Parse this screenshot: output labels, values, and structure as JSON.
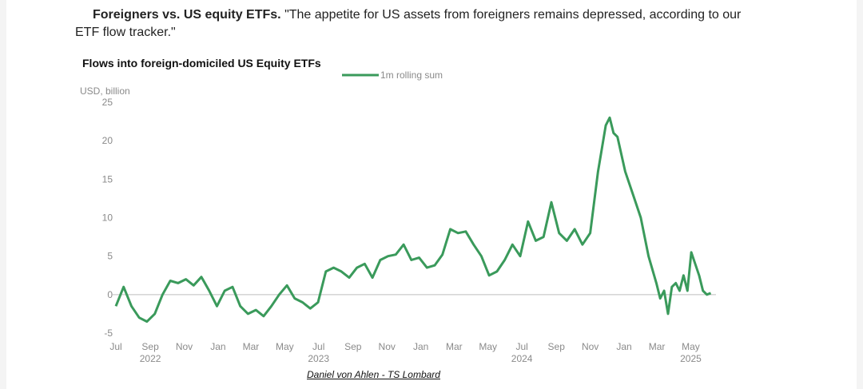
{
  "headline": {
    "bold": "Foreigners vs. US equity ETFs.",
    "quote": " \"The appetite for US assets from foreigners remains depressed, according to our ETF flow tracker.\""
  },
  "credit": "Daniel von Ahlen - TS Lombard",
  "colors": {
    "line": "#3a9a5b",
    "zero": "#bdbdbd",
    "text": "#8a8a8a"
  },
  "chart_data": {
    "type": "line",
    "title": "Flows into foreign-domiciled US Equity ETFs",
    "ylabel": "USD, billion",
    "xlabel": "",
    "ylim": [
      -5,
      25
    ],
    "yticks": [
      25,
      20,
      15,
      10,
      5,
      0,
      -5
    ],
    "x_tick_labels": [
      "Jul",
      "Sep",
      "Nov",
      "Jan",
      "Mar",
      "May",
      "Jul",
      "Sep",
      "Nov",
      "Jan",
      "Mar",
      "May",
      "Jul",
      "Sep",
      "Nov",
      "Jan",
      "Mar",
      "May"
    ],
    "x_tick_dates": [
      "2022-07",
      "2022-09",
      "2022-11",
      "2023-01",
      "2023-03",
      "2023-05",
      "2023-07",
      "2023-09",
      "2023-11",
      "2024-01",
      "2024-03",
      "2024-05",
      "2024-07",
      "2024-09",
      "2024-11",
      "2025-01",
      "2025-03",
      "2025-05"
    ],
    "year_labels": [
      {
        "label": "2022",
        "date": "2022-09"
      },
      {
        "label": "2023",
        "date": "2023-07"
      },
      {
        "label": "2024",
        "date": "2024-07"
      },
      {
        "label": "2025",
        "date": "2025-05"
      }
    ],
    "legend": "top",
    "grid": false,
    "series": [
      {
        "name": "1m rolling sum",
        "x": [
          "2022-07-01",
          "2022-07-15",
          "2022-07-29",
          "2022-08-12",
          "2022-08-26",
          "2022-09-09",
          "2022-09-23",
          "2022-10-07",
          "2022-10-21",
          "2022-11-04",
          "2022-11-18",
          "2022-12-02",
          "2022-12-16",
          "2022-12-30",
          "2023-01-13",
          "2023-01-27",
          "2023-02-10",
          "2023-02-24",
          "2023-03-10",
          "2023-03-24",
          "2023-04-07",
          "2023-04-21",
          "2023-05-05",
          "2023-05-19",
          "2023-06-02",
          "2023-06-16",
          "2023-06-30",
          "2023-07-14",
          "2023-07-28",
          "2023-08-11",
          "2023-08-25",
          "2023-09-08",
          "2023-09-22",
          "2023-10-06",
          "2023-10-20",
          "2023-11-03",
          "2023-11-17",
          "2023-12-01",
          "2023-12-15",
          "2023-12-29",
          "2024-01-12",
          "2024-01-26",
          "2024-02-09",
          "2024-02-23",
          "2024-03-08",
          "2024-03-22",
          "2024-04-05",
          "2024-04-19",
          "2024-05-03",
          "2024-05-17",
          "2024-05-31",
          "2024-06-14",
          "2024-06-28",
          "2024-07-12",
          "2024-07-26",
          "2024-08-09",
          "2024-08-23",
          "2024-09-06",
          "2024-09-20",
          "2024-10-04",
          "2024-10-18",
          "2024-11-01",
          "2024-11-15",
          "2024-11-29",
          "2024-12-06",
          "2024-12-13",
          "2024-12-20",
          "2025-01-03",
          "2025-01-17",
          "2025-01-31",
          "2025-02-14",
          "2025-02-28",
          "2025-03-07",
          "2025-03-14",
          "2025-03-21",
          "2025-03-28",
          "2025-04-04",
          "2025-04-11",
          "2025-04-18",
          "2025-04-25",
          "2025-05-02",
          "2025-05-09",
          "2025-05-16",
          "2025-05-23",
          "2025-05-30",
          "2025-06-06"
        ],
        "values": [
          -1.5,
          1.0,
          -1.5,
          -3.0,
          -3.5,
          -2.5,
          0.0,
          1.8,
          1.5,
          2.0,
          1.2,
          2.3,
          0.5,
          -1.5,
          0.5,
          1.0,
          -1.5,
          -2.5,
          -2.0,
          -2.8,
          -1.5,
          0.0,
          1.2,
          -0.5,
          -1.0,
          -1.8,
          -1.0,
          3.0,
          3.5,
          3.0,
          2.2,
          3.5,
          4.0,
          2.2,
          4.5,
          5.0,
          5.2,
          6.5,
          4.5,
          4.8,
          3.5,
          3.8,
          5.2,
          8.5,
          8.0,
          8.2,
          6.5,
          5.0,
          2.5,
          3.0,
          4.5,
          6.5,
          5.0,
          9.5,
          7.0,
          7.5,
          12.0,
          8.0,
          7.0,
          8.5,
          6.5,
          8.0,
          16.0,
          22.0,
          23.0,
          21.0,
          20.5,
          16.0,
          13.0,
          10.0,
          5.0,
          1.5,
          -0.5,
          0.5,
          -2.5,
          1.0,
          1.5,
          0.5,
          2.5,
          0.5,
          5.5,
          4.0,
          2.5,
          0.5,
          0.0,
          0.2
        ]
      }
    ]
  }
}
